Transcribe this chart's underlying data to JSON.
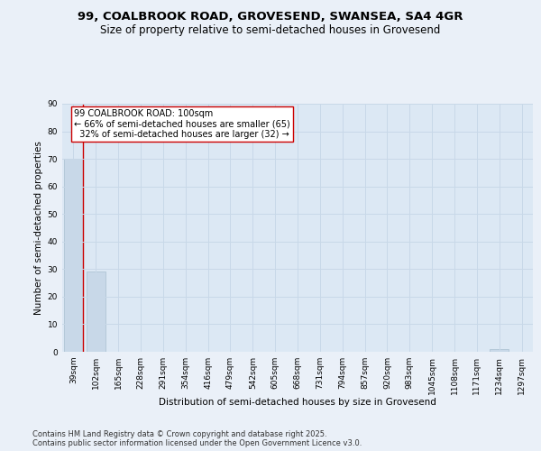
{
  "title_line1": "99, COALBROOK ROAD, GROVESEND, SWANSEA, SA4 4GR",
  "title_line2": "Size of property relative to semi-detached houses in Grovesend",
  "xlabel": "Distribution of semi-detached houses by size in Grovesend",
  "ylabel": "Number of semi-detached properties",
  "bar_labels": [
    "39sqm",
    "102sqm",
    "165sqm",
    "228sqm",
    "291sqm",
    "354sqm",
    "416sqm",
    "479sqm",
    "542sqm",
    "605sqm",
    "668sqm",
    "731sqm",
    "794sqm",
    "857sqm",
    "920sqm",
    "983sqm",
    "1045sqm",
    "1108sqm",
    "1171sqm",
    "1234sqm",
    "1297sqm"
  ],
  "bar_values": [
    70,
    29,
    0,
    0,
    0,
    0,
    0,
    0,
    0,
    0,
    0,
    0,
    0,
    0,
    0,
    0,
    0,
    0,
    0,
    1,
    0
  ],
  "bar_color": "#c8d8e8",
  "bar_edge_color": "#a8bfcf",
  "vline_color": "#cc0000",
  "annotation_text": "99 COALBROOK ROAD: 100sqm\n← 66% of semi-detached houses are smaller (65)\n  32% of semi-detached houses are larger (32) →",
  "annotation_box_color": "#ffffff",
  "annotation_border_color": "#cc0000",
  "ylim": [
    0,
    90
  ],
  "yticks": [
    0,
    10,
    20,
    30,
    40,
    50,
    60,
    70,
    80,
    90
  ],
  "background_color": "#eaf0f8",
  "plot_bg_color": "#dce8f4",
  "grid_color": "#c8d8e8",
  "footer_line1": "Contains HM Land Registry data © Crown copyright and database right 2025.",
  "footer_line2": "Contains public sector information licensed under the Open Government Licence v3.0.",
  "title_fontsize": 9.5,
  "subtitle_fontsize": 8.5,
  "axis_label_fontsize": 7.5,
  "tick_fontsize": 6.5,
  "annotation_fontsize": 7,
  "footer_fontsize": 6
}
